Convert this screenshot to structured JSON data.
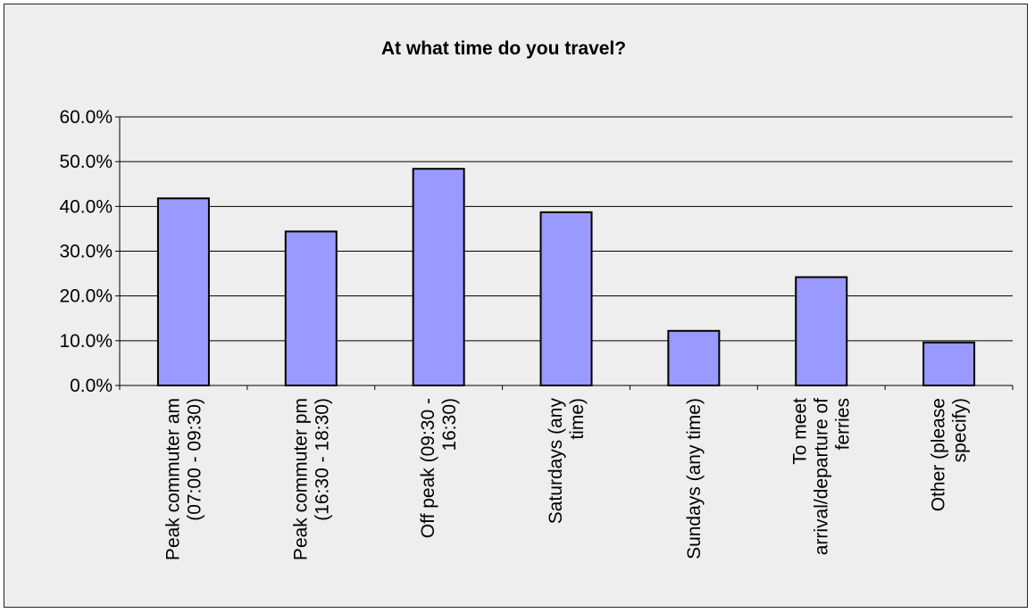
{
  "chart_data": {
    "type": "bar",
    "title": "At what time do you travel?",
    "xlabel": "",
    "ylabel": "",
    "ylim": [
      0,
      60
    ],
    "yticks": [
      {
        "value": 0,
        "label": "0.0%"
      },
      {
        "value": 10,
        "label": "10.0%"
      },
      {
        "value": 20,
        "label": "20.0%"
      },
      {
        "value": 30,
        "label": "30.0%"
      },
      {
        "value": 40,
        "label": "40.0%"
      },
      {
        "value": 50,
        "label": "50.0%"
      },
      {
        "value": 60,
        "label": "60.0%"
      }
    ],
    "grid": true,
    "legend": "none",
    "categories": [
      [
        "Peak commuter am",
        "(07:00 - 09:30)"
      ],
      [
        "Peak commuter pm",
        "(16:30 - 18:30)"
      ],
      [
        "Off peak (09:30 -",
        "16:30)"
      ],
      [
        "Saturdays (any",
        "time)"
      ],
      [
        "Sundays (any time)"
      ],
      [
        "To meet",
        "arrival/departure of",
        "ferries"
      ],
      [
        "Other (please",
        "specify)"
      ]
    ],
    "values": [
      41.8,
      34.4,
      48.4,
      38.7,
      12.2,
      24.2,
      9.6
    ],
    "colors": {
      "bar_fill": "#9999ff",
      "bar_stroke": "#000000",
      "background": "#eeeeee",
      "grid": "#000000"
    }
  }
}
